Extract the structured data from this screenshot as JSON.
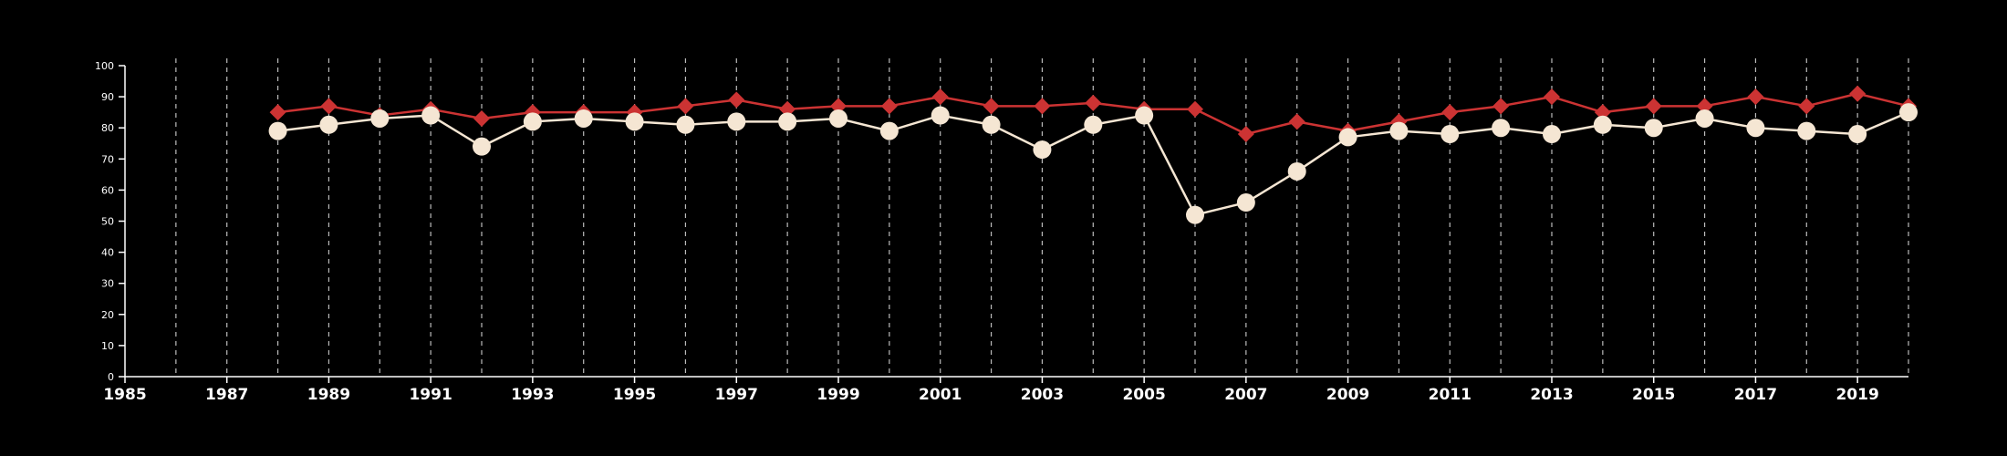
{
  "chart_data": {
    "type": "line",
    "title": "",
    "xlabel": "",
    "ylabel": "",
    "xlim": [
      1985,
      2020
    ],
    "ylim": [
      0,
      100
    ],
    "x_ticks": [
      1985,
      1987,
      1989,
      1991,
      1993,
      1995,
      1997,
      1999,
      2001,
      2003,
      2005,
      2007,
      2009,
      2011,
      2013,
      2015,
      2017,
      2019
    ],
    "y_ticks": [
      0,
      10,
      20,
      30,
      40,
      50,
      60,
      70,
      80,
      90,
      100
    ],
    "grid": "vertical dashed lines at each year from 1986 to 2020",
    "legend": "none",
    "series": [
      {
        "color": "#cc3333",
        "marker": "diamond",
        "x": [
          1988,
          1989,
          1990,
          1991,
          1992,
          1993,
          1994,
          1995,
          1996,
          1997,
          1998,
          1999,
          2000,
          2001,
          2002,
          2003,
          2004,
          2005,
          2006,
          2007,
          2008,
          2009,
          2010,
          2011,
          2012,
          2013,
          2014,
          2015,
          2016,
          2017,
          2018,
          2019,
          2020
        ],
        "values": [
          85,
          87,
          84,
          86,
          83,
          85,
          85,
          85,
          87,
          89,
          86,
          87,
          87,
          90,
          87,
          87,
          88,
          86,
          86,
          78,
          82,
          79,
          82,
          85,
          87,
          90,
          85,
          87,
          87,
          90,
          87,
          91,
          87
        ]
      },
      {
        "color": "#f5e6d3",
        "marker": "circle",
        "x": [
          1988,
          1989,
          1990,
          1991,
          1992,
          1993,
          1994,
          1995,
          1996,
          1997,
          1998,
          1999,
          2000,
          2001,
          2002,
          2003,
          2004,
          2005,
          2006,
          2007,
          2008,
          2009,
          2010,
          2011,
          2012,
          2013,
          2014,
          2015,
          2016,
          2017,
          2018,
          2019,
          2020
        ],
        "values": [
          79,
          81,
          83,
          84,
          74,
          82,
          83,
          82,
          81,
          82,
          82,
          83,
          79,
          84,
          81,
          73,
          81,
          84,
          52,
          56,
          66,
          77,
          79,
          78,
          80,
          78,
          81,
          80,
          83,
          80,
          79,
          78,
          85
        ]
      }
    ]
  }
}
